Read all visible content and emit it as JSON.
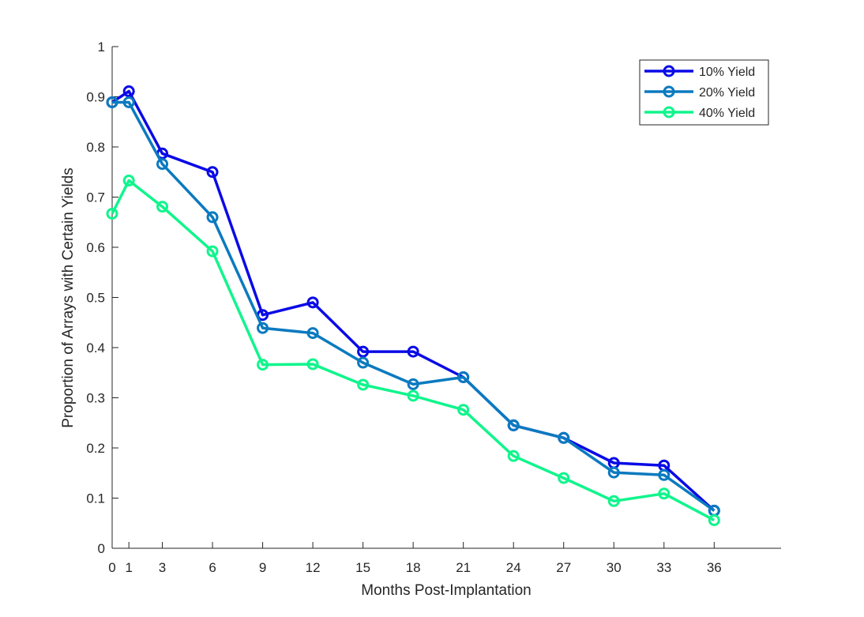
{
  "chart_data": {
    "type": "line",
    "title": "",
    "xlabel": "Months Post-Implantation",
    "ylabel": "Proportion of Arrays with Certain Yields",
    "xlim": [
      0,
      40
    ],
    "ylim": [
      0,
      1
    ],
    "x_ticks": [
      0,
      1,
      3,
      6,
      9,
      12,
      15,
      18,
      21,
      24,
      27,
      30,
      33,
      36
    ],
    "y_ticks": [
      0,
      0.1,
      0.2,
      0.3,
      0.4,
      0.5,
      0.6,
      0.7,
      0.8,
      0.9,
      1
    ],
    "y_tick_labels": [
      "0",
      "0.1",
      "0.2",
      "0.3",
      "0.4",
      "0.5",
      "0.6",
      "0.7",
      "0.8",
      "0.9",
      "1"
    ],
    "grid": false,
    "legend_position": "top-right",
    "marker": "circle",
    "series": [
      {
        "name": "10% Yield",
        "color": "#0a0ae6",
        "x": [
          0,
          1,
          3,
          6,
          9,
          12,
          15,
          18,
          21,
          24,
          27,
          30,
          33,
          36
        ],
        "values": [
          0.889,
          0.911,
          0.787,
          0.75,
          0.465,
          0.49,
          0.392,
          0.392,
          0.341,
          0.245,
          0.22,
          0.17,
          0.165,
          0.075
        ]
      },
      {
        "name": "20% Yield",
        "color": "#0b7abf",
        "x": [
          0,
          1,
          3,
          6,
          9,
          12,
          15,
          18,
          21,
          24,
          27,
          30,
          33,
          36
        ],
        "values": [
          0.889,
          0.889,
          0.766,
          0.66,
          0.439,
          0.429,
          0.37,
          0.327,
          0.341,
          0.245,
          0.22,
          0.151,
          0.146,
          0.075
        ]
      },
      {
        "name": "40% Yield",
        "color": "#10f58c",
        "x": [
          0,
          1,
          3,
          6,
          9,
          12,
          15,
          18,
          21,
          24,
          27,
          30,
          33,
          36
        ],
        "values": [
          0.667,
          0.733,
          0.681,
          0.592,
          0.366,
          0.367,
          0.326,
          0.304,
          0.276,
          0.184,
          0.14,
          0.094,
          0.109,
          0.056
        ]
      }
    ]
  }
}
